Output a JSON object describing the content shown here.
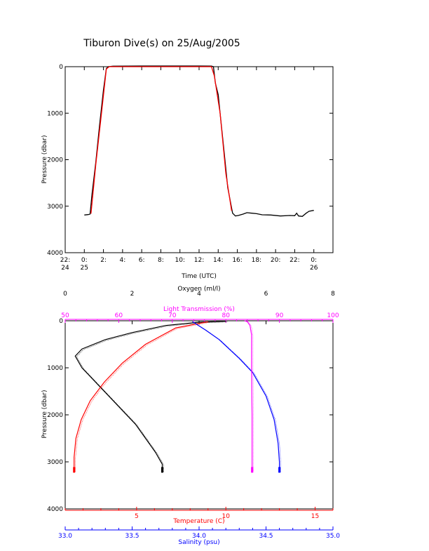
{
  "title": "Tiburon Dive(s) on 25/Aug/2005",
  "chart_data": [
    {
      "type": "line",
      "title": "Tiburon Dive(s) on 25/Aug/2005",
      "xlabel": "Time (UTC)",
      "ylabel": "Pressure (dbar)",
      "xlim": [
        -2,
        26
      ],
      "ylim": [
        4000,
        0
      ],
      "x_ticks": [
        {
          "x": -2,
          "line1": "22:",
          "line2": "24"
        },
        {
          "x": 0,
          "line1": "0:",
          "line2": "25"
        },
        {
          "x": 2,
          "line1": "2:",
          "line2": ""
        },
        {
          "x": 4,
          "line1": "4:",
          "line2": ""
        },
        {
          "x": 6,
          "line1": "6:",
          "line2": ""
        },
        {
          "x": 8,
          "line1": "8:",
          "line2": ""
        },
        {
          "x": 10,
          "line1": "10:",
          "line2": ""
        },
        {
          "x": 12,
          "line1": "12:",
          "line2": ""
        },
        {
          "x": 14,
          "line1": "14:",
          "line2": ""
        },
        {
          "x": 16,
          "line1": "16:",
          "line2": ""
        },
        {
          "x": 18,
          "line1": "18:",
          "line2": ""
        },
        {
          "x": 20,
          "line1": "20:",
          "line2": ""
        },
        {
          "x": 22,
          "line1": "22:",
          "line2": ""
        },
        {
          "x": 24,
          "line1": "0:",
          "line2": "26"
        }
      ],
      "y_ticks": [
        0,
        1000,
        2000,
        3000,
        4000
      ],
      "series": [
        {
          "color": "#000000",
          "points": [
            [
              0.0,
              3190
            ],
            [
              0.4,
              3180
            ],
            [
              0.6,
              3170
            ],
            [
              0.8,
              2750
            ],
            [
              1.2,
              2050
            ],
            [
              1.6,
              1250
            ],
            [
              2.0,
              500
            ],
            [
              2.3,
              40
            ],
            [
              2.5,
              0
            ],
            [
              3.0,
              -10
            ],
            [
              6.0,
              -15
            ],
            [
              9.0,
              -15
            ],
            [
              12.0,
              -15
            ],
            [
              13.3,
              -12
            ],
            [
              13.5,
              0
            ],
            [
              13.7,
              350
            ],
            [
              14.0,
              600
            ],
            [
              14.2,
              1000
            ],
            [
              14.6,
              1800
            ],
            [
              15.0,
              2600
            ],
            [
              15.5,
              3150
            ],
            [
              15.8,
              3210
            ],
            [
              16.1,
              3200
            ],
            [
              16.6,
              3170
            ],
            [
              17.0,
              3140
            ],
            [
              17.5,
              3150
            ],
            [
              18.0,
              3160
            ],
            [
              18.6,
              3185
            ],
            [
              19.5,
              3190
            ],
            [
              20.5,
              3210
            ],
            [
              21.5,
              3200
            ],
            [
              22.0,
              3205
            ],
            [
              22.2,
              3150
            ],
            [
              22.4,
              3210
            ],
            [
              22.8,
              3220
            ],
            [
              23.2,
              3150
            ],
            [
              23.5,
              3110
            ],
            [
              24.0,
              3090
            ]
          ]
        },
        {
          "color": "#ff0000",
          "points": [
            [
              0.7,
              3160
            ],
            [
              1.2,
              2100
            ],
            [
              1.8,
              1000
            ],
            [
              2.3,
              50
            ],
            [
              2.6,
              0
            ],
            [
              13.3,
              0
            ],
            [
              13.6,
              200
            ],
            [
              14.2,
              1000
            ],
            [
              14.8,
              2300
            ],
            [
              15.4,
              3100
            ]
          ]
        }
      ]
    },
    {
      "type": "line",
      "ylabel": "Pressure (dbar)",
      "ylim": [
        4000,
        0
      ],
      "y_ticks": [
        0,
        1000,
        2000,
        3000,
        4000
      ],
      "axes": {
        "oxygen": {
          "label": "Oxygen (ml/l)",
          "color": "#000000",
          "range": [
            0,
            8
          ],
          "ticks": [
            0,
            2,
            4,
            6,
            8
          ]
        },
        "light_transmission": {
          "label": "Light Transmission (%)",
          "color": "#ff00ff",
          "range": [
            50,
            100
          ],
          "ticks": [
            50,
            60,
            70,
            80,
            90,
            100
          ]
        },
        "temperature": {
          "label": "Temperature (C)",
          "color": "#ff0000",
          "range": [
            1.0,
            16.0
          ],
          "ticks": [
            5,
            10,
            15
          ]
        },
        "salinity": {
          "label": "Salinity (psu)",
          "color": "#0000ff",
          "range": [
            33.0,
            35.0
          ],
          "ticks": [
            "33.0",
            "33.5",
            "34.0",
            "34.5",
            "35.0"
          ]
        }
      },
      "series": [
        {
          "name_key": "oxygen",
          "color": "#000000",
          "x_axis": "oxygen",
          "points": [
            [
              4.8,
              10
            ],
            [
              4.0,
              30
            ],
            [
              3.0,
              100
            ],
            [
              2.0,
              250
            ],
            [
              1.2,
              400
            ],
            [
              0.5,
              600
            ],
            [
              0.3,
              750
            ],
            [
              0.5,
              1000
            ],
            [
              0.9,
              1300
            ],
            [
              1.3,
              1600
            ],
            [
              1.7,
              1900
            ],
            [
              2.1,
              2200
            ],
            [
              2.4,
              2500
            ],
            [
              2.7,
              2800
            ],
            [
              2.9,
              3050
            ],
            [
              2.9,
              3200
            ]
          ]
        },
        {
          "name_key": "temperature",
          "color": "#ff0000",
          "x_axis": "temperature",
          "points": [
            [
              9.0,
              20
            ],
            [
              7.2,
              150
            ],
            [
              5.5,
              500
            ],
            [
              4.2,
              900
            ],
            [
              3.2,
              1300
            ],
            [
              2.4,
              1700
            ],
            [
              1.9,
              2100
            ],
            [
              1.6,
              2500
            ],
            [
              1.5,
              2900
            ],
            [
              1.5,
              3200
            ]
          ]
        },
        {
          "name_key": "salinity",
          "color": "#0000ff",
          "x_axis": "salinity",
          "points": [
            [
              33.95,
              20
            ],
            [
              34.05,
              200
            ],
            [
              34.15,
              400
            ],
            [
              34.3,
              800
            ],
            [
              34.4,
              1100
            ],
            [
              34.5,
              1600
            ],
            [
              34.56,
              2100
            ],
            [
              34.59,
              2600
            ],
            [
              34.6,
              3000
            ],
            [
              34.6,
              3200
            ]
          ]
        },
        {
          "name_key": "light_transmission",
          "color": "#ff00ff",
          "x_axis": "light_transmission",
          "points": [
            [
              83.5,
              0
            ],
            [
              84.0,
              20
            ],
            [
              84.5,
              100
            ],
            [
              84.8,
              300
            ],
            [
              84.8,
              1000
            ],
            [
              84.9,
              2000
            ],
            [
              84.9,
              3000
            ],
            [
              84.9,
              3200
            ]
          ]
        }
      ]
    }
  ]
}
